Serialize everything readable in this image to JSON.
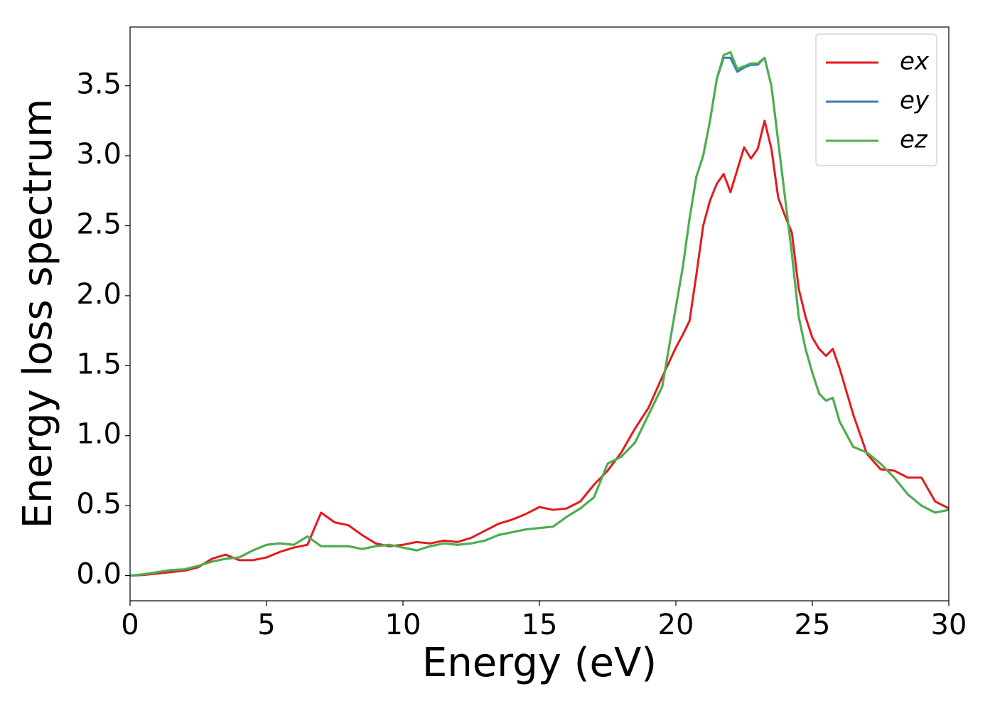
{
  "chart_data": {
    "type": "line",
    "xlabel": "Energy (eV)",
    "ylabel": "Energy loss spectrum",
    "x": [
      0,
      0.5,
      1,
      1.5,
      2,
      2.5,
      3,
      3.5,
      4,
      4.5,
      5,
      5.5,
      6,
      6.5,
      7,
      7.5,
      8,
      8.5,
      9,
      9.5,
      10,
      10.5,
      11,
      11.5,
      12,
      12.5,
      13,
      13.5,
      14,
      14.5,
      15,
      15.5,
      16,
      16.5,
      17,
      17.5,
      18,
      18.5,
      19,
      19.5,
      20,
      20.25,
      20.5,
      20.75,
      21,
      21.25,
      21.5,
      21.75,
      22,
      22.25,
      22.5,
      22.75,
      23,
      23.25,
      23.5,
      23.75,
      24,
      24.25,
      24.5,
      24.75,
      25,
      25.25,
      25.5,
      25.75,
      26,
      26.5,
      27,
      27.5,
      28,
      28.5,
      29,
      29.5,
      30
    ],
    "series": [
      {
        "name": "ex",
        "color": "#e41a1c",
        "values": [
          0,
          0.005,
          0.015,
          0.025,
          0.035,
          0.06,
          0.12,
          0.15,
          0.11,
          0.11,
          0.13,
          0.17,
          0.2,
          0.22,
          0.45,
          0.38,
          0.36,
          0.29,
          0.23,
          0.21,
          0.22,
          0.24,
          0.23,
          0.25,
          0.24,
          0.27,
          0.32,
          0.37,
          0.4,
          0.44,
          0.49,
          0.47,
          0.48,
          0.53,
          0.65,
          0.75,
          0.88,
          1.05,
          1.2,
          1.42,
          1.63,
          1.72,
          1.82,
          2.15,
          2.5,
          2.68,
          2.8,
          2.87,
          2.74,
          2.9,
          3.06,
          2.98,
          3.05,
          3.25,
          3.05,
          2.7,
          2.57,
          2.45,
          2.05,
          1.85,
          1.7,
          1.62,
          1.57,
          1.62,
          1.48,
          1.15,
          0.87,
          0.76,
          0.75,
          0.7,
          0.7,
          0.53,
          0.48
        ]
      },
      {
        "name": "ey",
        "color": "#377eb8",
        "values": [
          0,
          0.01,
          0.025,
          0.04,
          0.045,
          0.07,
          0.1,
          0.12,
          0.13,
          0.18,
          0.22,
          0.23,
          0.22,
          0.28,
          0.21,
          0.21,
          0.21,
          0.19,
          0.21,
          0.22,
          0.2,
          0.18,
          0.21,
          0.23,
          0.22,
          0.23,
          0.25,
          0.29,
          0.31,
          0.33,
          0.34,
          0.35,
          0.42,
          0.48,
          0.56,
          0.8,
          0.85,
          0.95,
          1.15,
          1.35,
          1.92,
          2.2,
          2.55,
          2.85,
          3.0,
          3.25,
          3.55,
          3.7,
          3.7,
          3.6,
          3.63,
          3.65,
          3.65,
          3.7,
          3.5,
          3.1,
          2.7,
          2.3,
          1.85,
          1.62,
          1.45,
          1.3,
          1.25,
          1.27,
          1.1,
          0.92,
          0.88,
          0.8,
          0.7,
          0.58,
          0.5,
          0.45,
          0.47
        ]
      },
      {
        "name": "ez",
        "color": "#4daf4a",
        "values": [
          0,
          0.01,
          0.025,
          0.04,
          0.045,
          0.07,
          0.1,
          0.12,
          0.13,
          0.18,
          0.22,
          0.23,
          0.22,
          0.28,
          0.21,
          0.21,
          0.21,
          0.19,
          0.21,
          0.22,
          0.2,
          0.18,
          0.21,
          0.23,
          0.22,
          0.23,
          0.25,
          0.29,
          0.31,
          0.33,
          0.34,
          0.35,
          0.42,
          0.48,
          0.56,
          0.8,
          0.85,
          0.95,
          1.15,
          1.35,
          1.92,
          2.2,
          2.55,
          2.85,
          3.0,
          3.25,
          3.55,
          3.72,
          3.74,
          3.62,
          3.64,
          3.66,
          3.66,
          3.7,
          3.5,
          3.1,
          2.7,
          2.3,
          1.85,
          1.62,
          1.45,
          1.3,
          1.25,
          1.27,
          1.1,
          0.92,
          0.88,
          0.8,
          0.7,
          0.58,
          0.5,
          0.45,
          0.47
        ]
      }
    ],
    "xlim": [
      0,
      30
    ],
    "xticks": [
      0,
      5,
      10,
      15,
      20,
      25,
      30
    ],
    "ylim": [
      -0.18,
      3.92
    ],
    "yticks": [
      {
        "value": 0,
        "label": "0.0"
      },
      0.5,
      {
        "value": 1,
        "label": "1.0"
      },
      1.5,
      {
        "value": 2,
        "label": "2.0"
      },
      2.5,
      {
        "value": 3,
        "label": "3.0"
      },
      3.5
    ],
    "legend": "upper right"
  }
}
